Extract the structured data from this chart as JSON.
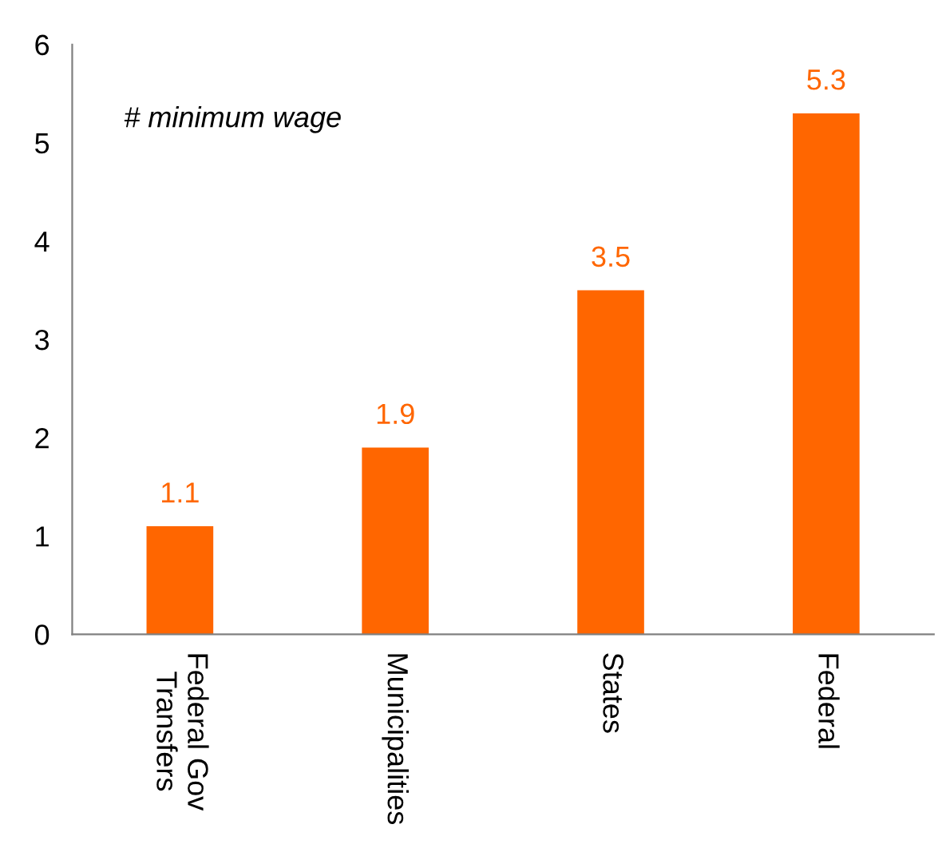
{
  "chart_data": {
    "type": "bar",
    "categories": [
      "Federal Gov\nTransfers",
      "Municipalities",
      "States",
      "Federal"
    ],
    "values": [
      1.1,
      1.9,
      3.5,
      5.3
    ],
    "color": "#ff6600",
    "ylim": [
      0,
      6
    ],
    "yticks": [
      0,
      1,
      2,
      3,
      4,
      5,
      6
    ],
    "data_labels": true,
    "grid": false,
    "legend": false,
    "annotations": [
      "# minimum wage"
    ]
  }
}
